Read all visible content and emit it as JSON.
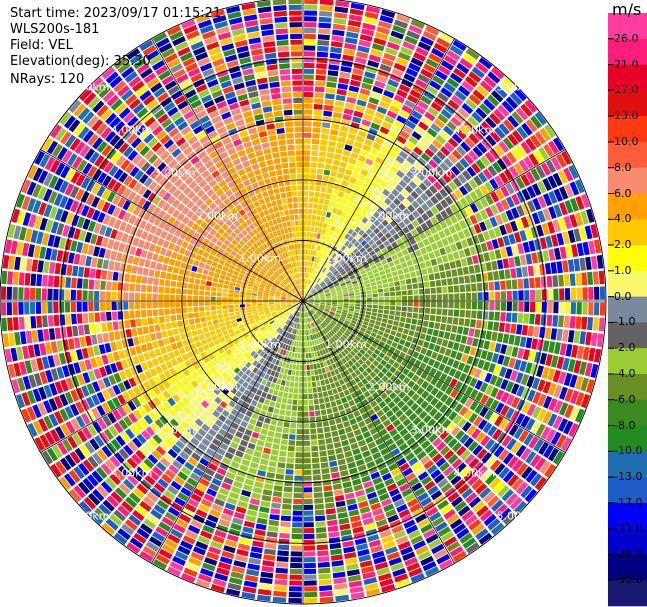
{
  "header": {
    "start_time": "Start time: 2023/09/17 01:15:21",
    "instrument": "WLS200s-181",
    "field": "Field: VEL",
    "elevation": "Elevation(deg): 35.30",
    "nrays": "NRays: 120"
  },
  "chart_data": {
    "type": "heatmap",
    "projection": "polar-ppi",
    "unit_label": "m/s",
    "nrays": 120,
    "range_rings_km": [
      1.0,
      2.0,
      3.0,
      4.0,
      5.0
    ],
    "ring_labels": [
      "1.00km",
      "2.00km",
      "3.00km",
      "4.00km",
      "5.00km"
    ],
    "max_range_km": 5.0,
    "radial_velocity_field": {
      "description_units": "m/s",
      "approach_direction_deg": 310,
      "receding_direction_deg": 130,
      "near_range_peak_ms": 7.5,
      "noise_begins_km": 3.2
    },
    "colorbar": {
      "ticks": [
        "26.0",
        "21.0",
        "17.0",
        "13.0",
        "10.0",
        "8.0",
        "6.0",
        "4.0",
        "2.0",
        "1.0",
        "0.0",
        "-1.0",
        "-2.0",
        "-4.0",
        "-6.0",
        "-8.0",
        "-10.0",
        "-13.0",
        "-17.0",
        "-21.0",
        "-26.0",
        "-30.0"
      ],
      "boundaries": [
        30,
        26,
        21,
        17,
        13,
        10,
        8,
        6,
        4,
        2,
        1,
        0,
        -1,
        -2,
        -4,
        -6,
        -8,
        -10,
        -13,
        -17,
        -21,
        -26,
        -30
      ],
      "colors": [
        "#ff3d9f",
        "#ff1f7a",
        "#e8002a",
        "#e01010",
        "#ff3a10",
        "#ff5c3a",
        "#f78c70",
        "#ffa000",
        "#ffc800",
        "#ffff00",
        "#f8f86a",
        "#7a8a9c",
        "#636363",
        "#9ccc34",
        "#6b8e23",
        "#3a8a20",
        "#228b22",
        "#1f6fb0",
        "#1e5cc8",
        "#0000ff",
        "#0000cd",
        "#000080",
        "#191970"
      ]
    }
  }
}
